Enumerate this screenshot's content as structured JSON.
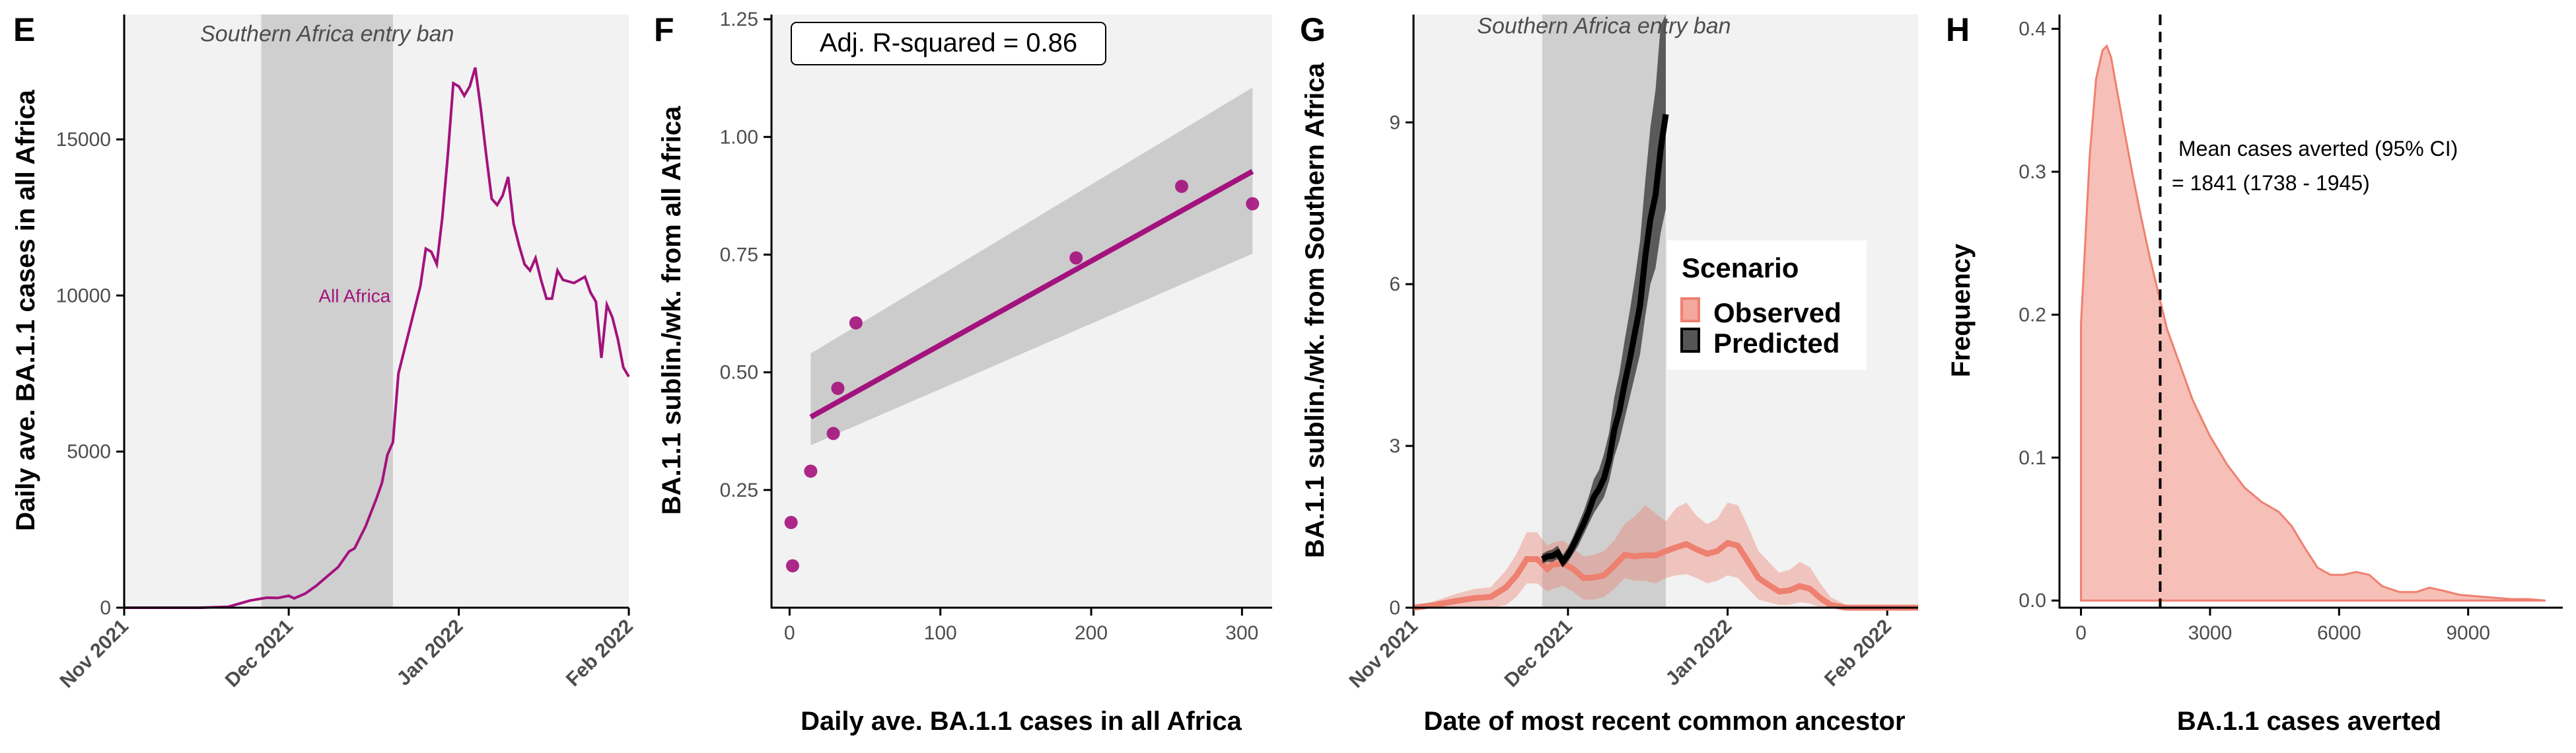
{
  "chart_data": [
    {
      "panel": "E",
      "type": "line",
      "ylabel": "Daily ave. BA.1.1 cases in all Africa",
      "xlabel": "",
      "x_tick_labels": [
        "Nov 2021",
        "Dec 2021",
        "Jan 2022",
        "Feb 2022"
      ],
      "x_tick_dates": [
        "2021-11-01",
        "2021-12-01",
        "2022-01-01",
        "2022-02-01"
      ],
      "xlim": [
        "2021-11-01",
        "2022-02-01"
      ],
      "ylim": [
        0,
        19000
      ],
      "y_ticks": [
        0,
        5000,
        10000,
        15000
      ],
      "shaded_region": {
        "label": "Southern Africa entry ban",
        "start": "2021-11-26",
        "end": "2021-12-20"
      },
      "series": [
        {
          "name": "All Africa",
          "color": "#a3127d",
          "points": [
            [
              "2021-11-01",
              0
            ],
            [
              "2021-11-15",
              0
            ],
            [
              "2021-11-20",
              30
            ],
            [
              "2021-11-24",
              230
            ],
            [
              "2021-11-27",
              320
            ],
            [
              "2021-11-29",
              310
            ],
            [
              "2021-12-01",
              380
            ],
            [
              "2021-12-02",
              300
            ],
            [
              "2021-12-04",
              450
            ],
            [
              "2021-12-06",
              700
            ],
            [
              "2021-12-08",
              1000
            ],
            [
              "2021-12-10",
              1300
            ],
            [
              "2021-12-12",
              1800
            ],
            [
              "2021-12-13",
              1900
            ],
            [
              "2021-12-15",
              2600
            ],
            [
              "2021-12-17",
              3500
            ],
            [
              "2021-12-18",
              4000
            ],
            [
              "2021-12-19",
              4900
            ],
            [
              "2021-12-20",
              5300
            ],
            [
              "2021-12-21",
              7500
            ],
            [
              "2021-12-23",
              8900
            ],
            [
              "2021-12-25",
              10300
            ],
            [
              "2021-12-26",
              11500
            ],
            [
              "2021-12-27",
              11400
            ],
            [
              "2021-12-28",
              11000
            ],
            [
              "2021-12-29",
              12500
            ],
            [
              "2021-12-30",
              14500
            ],
            [
              "2021-12-31",
              16800
            ],
            [
              "2022-01-01",
              16700
            ],
            [
              "2022-01-02",
              16400
            ],
            [
              "2022-01-03",
              16700
            ],
            [
              "2022-01-04",
              17300
            ],
            [
              "2022-01-05",
              16000
            ],
            [
              "2022-01-06",
              14500
            ],
            [
              "2022-01-07",
              13100
            ],
            [
              "2022-01-08",
              12900
            ],
            [
              "2022-01-09",
              13200
            ],
            [
              "2022-01-10",
              13800
            ],
            [
              "2022-01-11",
              12300
            ],
            [
              "2022-01-12",
              11600
            ],
            [
              "2022-01-13",
              11000
            ],
            [
              "2022-01-14",
              10800
            ],
            [
              "2022-01-15",
              11200
            ],
            [
              "2022-01-16",
              10500
            ],
            [
              "2022-01-17",
              9900
            ],
            [
              "2022-01-18",
              9900
            ],
            [
              "2022-01-19",
              10800
            ],
            [
              "2022-01-20",
              10500
            ],
            [
              "2022-01-22",
              10400
            ],
            [
              "2022-01-24",
              10600
            ],
            [
              "2022-01-25",
              10100
            ],
            [
              "2022-01-26",
              9800
            ],
            [
              "2022-01-27",
              8000
            ],
            [
              "2022-01-28",
              9700
            ],
            [
              "2022-01-29",
              9300
            ],
            [
              "2022-01-30",
              8600
            ],
            [
              "2022-01-31",
              7700
            ],
            [
              "2022-02-01",
              7400
            ]
          ]
        }
      ],
      "annotations": [
        {
          "text": "Southern Africa entry ban",
          "x": "2021-12-08",
          "y": 18400
        },
        {
          "text": "All Africa",
          "x": "2021-12-13",
          "y": 10000
        }
      ]
    },
    {
      "panel": "F",
      "type": "scatter",
      "xlabel": "Daily ave. BA.1.1 cases in all Africa",
      "ylabel": "BA.1.1 sublin./wk. from all Africa",
      "xlim": [
        -12,
        320
      ],
      "ylim": [
        0,
        1.26
      ],
      "x_ticks": [
        0,
        100,
        200,
        300
      ],
      "y_ticks": [
        0.25,
        0.5,
        0.75,
        1.0,
        1.25
      ],
      "y_tick_labels": [
        "0.25",
        "0.50",
        "0.75",
        "1.00",
        "1.25"
      ],
      "points": [
        [
          1,
          0.181
        ],
        [
          2,
          0.089
        ],
        [
          14,
          0.29
        ],
        [
          29,
          0.37
        ],
        [
          32,
          0.466
        ],
        [
          44,
          0.605
        ],
        [
          190,
          0.743
        ],
        [
          260,
          0.895
        ],
        [
          307,
          0.858
        ]
      ],
      "fit": {
        "x": [
          14,
          307
        ],
        "y": [
          0.405,
          0.927
        ],
        "ci_lower": [
          0.345,
          0.752
        ],
        "ci_upper": [
          0.54,
          1.105
        ]
      },
      "point_color": "#a3127d",
      "line_color": "#a3127d",
      "annotation": "Adj. R-squared = 0.86"
    },
    {
      "panel": "G",
      "type": "line",
      "xlabel": "Date of most recent common ancestor",
      "ylabel": "BA.1.1 sublin./wk. from Southern Africa",
      "x_tick_labels": [
        "Nov 2021",
        "Dec 2021",
        "Jan 2022",
        "Feb 2022"
      ],
      "x_tick_dates": [
        "2021-11-01",
        "2021-12-01",
        "2022-01-01",
        "2022-02-01"
      ],
      "xlim": [
        "2021-11-01",
        "2022-02-07"
      ],
      "ylim": [
        0,
        11
      ],
      "y_ticks": [
        0,
        3,
        6,
        9
      ],
      "shaded_region": {
        "label": "Southern Africa entry ban",
        "start": "2021-11-26",
        "end": "2021-12-20"
      },
      "legend": {
        "title": "Scenario",
        "entries": [
          "Observed",
          "Predicted"
        ],
        "position": "right"
      },
      "series": [
        {
          "name": "Observed",
          "color": "#ee8070",
          "points": [
            [
              "2021-11-01",
              0
            ],
            [
              "2021-11-05",
              0.05
            ],
            [
              "2021-11-09",
              0.12
            ],
            [
              "2021-11-13",
              0.18
            ],
            [
              "2021-11-16",
              0.2
            ],
            [
              "2021-11-19",
              0.38
            ],
            [
              "2021-11-21",
              0.6
            ],
            [
              "2021-11-23",
              0.9
            ],
            [
              "2021-11-25",
              0.9
            ],
            [
              "2021-11-27",
              0.72
            ],
            [
              "2021-11-28",
              0.8
            ],
            [
              "2021-11-30",
              0.82
            ],
            [
              "2021-12-02",
              0.72
            ],
            [
              "2021-12-04",
              0.55
            ],
            [
              "2021-12-06",
              0.56
            ],
            [
              "2021-12-08",
              0.6
            ],
            [
              "2021-12-10",
              0.78
            ],
            [
              "2021-12-12",
              0.98
            ],
            [
              "2021-12-14",
              0.95
            ],
            [
              "2021-12-16",
              0.97
            ],
            [
              "2021-12-18",
              0.97
            ],
            [
              "2021-12-20",
              1.05
            ],
            [
              "2021-12-22",
              1.12
            ],
            [
              "2021-12-24",
              1.18
            ],
            [
              "2021-12-26",
              1.08
            ],
            [
              "2021-12-28",
              1.0
            ],
            [
              "2021-12-30",
              1.05
            ],
            [
              "2022-01-01",
              1.2
            ],
            [
              "2022-01-03",
              1.15
            ],
            [
              "2022-01-05",
              0.85
            ],
            [
              "2022-01-07",
              0.55
            ],
            [
              "2022-01-09",
              0.42
            ],
            [
              "2022-01-11",
              0.3
            ],
            [
              "2022-01-13",
              0.32
            ],
            [
              "2022-01-15",
              0.4
            ],
            [
              "2022-01-17",
              0.35
            ],
            [
              "2022-01-19",
              0.18
            ],
            [
              "2022-01-21",
              0.05
            ],
            [
              "2022-01-24",
              0.0
            ],
            [
              "2022-02-07",
              0.0
            ]
          ],
          "ci_lower": [
            0,
            0,
            0,
            0,
            0,
            0.05,
            0.2,
            0.45,
            0.45,
            0.3,
            0.35,
            0.4,
            0.3,
            0.15,
            0.15,
            0.2,
            0.35,
            0.55,
            0.5,
            0.5,
            0.45,
            0.55,
            0.6,
            0.62,
            0.55,
            0.45,
            0.5,
            0.6,
            0.55,
            0.35,
            0.15,
            0.1,
            0.05,
            0.05,
            0.1,
            0.08,
            0,
            0,
            0,
            0
          ],
          "ci_upper": [
            0,
            0.12,
            0.25,
            0.35,
            0.38,
            0.7,
            1.0,
            1.4,
            1.4,
            1.15,
            1.2,
            1.25,
            1.1,
            0.95,
            0.98,
            1.05,
            1.25,
            1.55,
            1.7,
            1.9,
            1.75,
            1.6,
            1.85,
            1.95,
            1.7,
            1.55,
            1.65,
            1.95,
            1.9,
            1.5,
            1.05,
            0.85,
            0.65,
            0.7,
            0.85,
            0.75,
            0.45,
            0.2,
            0.05,
            0.02
          ]
        },
        {
          "name": "Predicted",
          "color": "#000000",
          "points": [
            [
              "2021-11-26",
              0.9
            ],
            [
              "2021-11-27",
              0.95
            ],
            [
              "2021-11-28",
              0.96
            ],
            [
              "2021-11-29",
              1.02
            ],
            [
              "2021-11-30",
              0.85
            ],
            [
              "2021-12-01",
              0.98
            ],
            [
              "2021-12-02",
              1.15
            ],
            [
              "2021-12-03",
              1.35
            ],
            [
              "2021-12-04",
              1.55
            ],
            [
              "2021-12-05",
              1.78
            ],
            [
              "2021-12-06",
              2.05
            ],
            [
              "2021-12-07",
              2.2
            ],
            [
              "2021-12-08",
              2.4
            ],
            [
              "2021-12-09",
              2.75
            ],
            [
              "2021-12-10",
              3.3
            ],
            [
              "2021-12-11",
              3.65
            ],
            [
              "2021-12-12",
              4.15
            ],
            [
              "2021-12-13",
              4.6
            ],
            [
              "2021-12-14",
              5.1
            ],
            [
              "2021-12-15",
              5.6
            ],
            [
              "2021-12-16",
              6.5
            ],
            [
              "2021-12-17",
              7.2
            ],
            [
              "2021-12-18",
              7.65
            ],
            [
              "2021-12-19",
              8.5
            ],
            [
              "2021-12-20",
              9.15
            ]
          ],
          "ci_lower": [
            0.82,
            0.85,
            0.85,
            0.9,
            0.75,
            0.85,
            1.0,
            1.15,
            1.35,
            1.55,
            1.75,
            1.9,
            2.05,
            2.35,
            2.8,
            3.1,
            3.5,
            3.9,
            4.3,
            4.7,
            5.4,
            6.0,
            6.3,
            6.95,
            7.4
          ],
          "ci_upper": [
            1.0,
            1.05,
            1.08,
            1.15,
            0.98,
            1.12,
            1.32,
            1.55,
            1.78,
            2.05,
            2.38,
            2.55,
            2.85,
            3.25,
            3.9,
            4.35,
            4.95,
            5.5,
            6.1,
            6.8,
            7.9,
            8.9,
            9.6,
            10.8,
            11.6
          ]
        }
      ],
      "annotations": [
        {
          "text": "Southern Africa entry ban",
          "x": "2021-12-08",
          "y": 10.8
        }
      ]
    },
    {
      "panel": "H",
      "type": "area",
      "xlabel": "BA.1.1 cases averted",
      "ylabel": "Frequency",
      "xlim": [
        -500,
        11200
      ],
      "ylim": [
        -0.005,
        0.41
      ],
      "x_ticks": [
        0,
        3000,
        6000,
        9000
      ],
      "y_ticks": [
        0.0,
        0.1,
        0.2,
        0.3,
        0.4
      ],
      "y_tick_labels": [
        "0.0",
        "0.1",
        "0.2",
        "0.3",
        "0.4"
      ],
      "fill_color": "#ee8070",
      "mean_line": 1841,
      "annotation_lines": [
        "Mean cases averted (95% CI)",
        "= 1841 (1738 - 1945)"
      ],
      "density": {
        "x": [
          0,
          80,
          200,
          350,
          500,
          600,
          700,
          850,
          1000,
          1200,
          1400,
          1600,
          1800,
          2000,
          2300,
          2600,
          3000,
          3400,
          3800,
          4200,
          4600,
          4900,
          5200,
          5500,
          5800,
          6100,
          6400,
          6700,
          7000,
          7400,
          7800,
          8100,
          8400,
          8800,
          9200,
          9600,
          10000,
          10400,
          10800
        ],
        "y": [
          0.194,
          0.24,
          0.31,
          0.365,
          0.385,
          0.388,
          0.38,
          0.355,
          0.33,
          0.298,
          0.268,
          0.24,
          0.215,
          0.19,
          0.165,
          0.14,
          0.115,
          0.095,
          0.079,
          0.069,
          0.062,
          0.052,
          0.037,
          0.023,
          0.018,
          0.018,
          0.02,
          0.018,
          0.01,
          0.006,
          0.006,
          0.009,
          0.007,
          0.004,
          0.003,
          0.002,
          0.001,
          0.001,
          0.0
        ]
      }
    }
  ]
}
